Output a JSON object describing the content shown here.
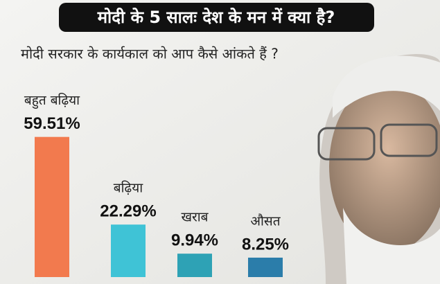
{
  "chart_data": {
    "type": "bar",
    "title": "मोदी के 5 सालः देश के मन में क्या है?",
    "subtitle": "मोदी सरकार के कार्यकाल को आप कैसे आंकते हैं ?",
    "categories": [
      "बहुत बढ़िया",
      "बढ़िया",
      "खराब",
      "औसत"
    ],
    "values": [
      59.51,
      22.29,
      9.94,
      8.25
    ],
    "value_labels": [
      "59.51%",
      "22.29%",
      "9.94%",
      "8.25%"
    ],
    "colors": [
      "#f27a4e",
      "#3fc3d6",
      "#2ea2b5",
      "#2b7daa"
    ]
  }
}
